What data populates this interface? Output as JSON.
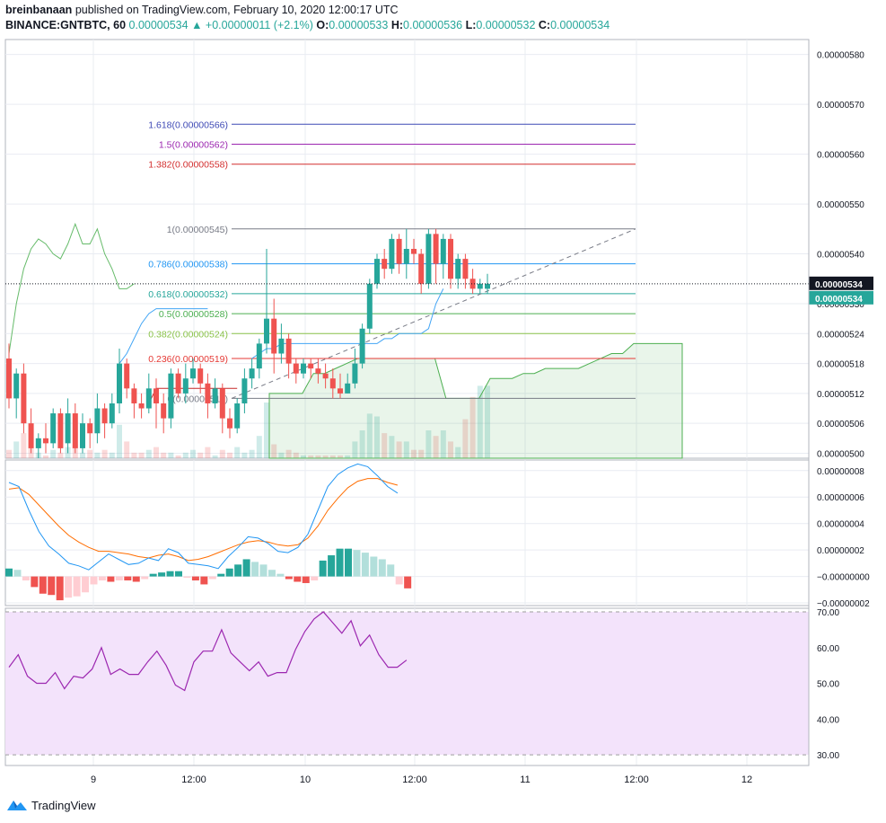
{
  "header": {
    "author": "breinbanaan",
    "published_text": "published on TradingView.com, February 10, 2020 12:00:17 UTC",
    "symbol": "BINANCE:GNTBTC, 60",
    "price": "0.00000534",
    "change": "▲ +0.00000011 (+2.1%)",
    "o_label": "O:",
    "o": "0.00000533",
    "h_label": "H:",
    "h": "0.00000536",
    "l_label": "L:",
    "l": "0.00000532",
    "c_label": "C:",
    "c": "0.00000534"
  },
  "brand": {
    "name": "TradingView"
  },
  "colors": {
    "up": "#26a69a",
    "down": "#ef5350",
    "grid": "#e9ecf2",
    "rsi_fill": "#f3e3fb",
    "rsi_line": "#9c27b0",
    "macd": "#2196f3",
    "signal": "#ff6d00"
  },
  "chart_data": {
    "type": "candlestick",
    "price_axis": {
      "ylim": [
        4.99e-06,
        5.83e-06
      ],
      "ticks": [
        "0.00000580",
        "0.00000570",
        "0.00000560",
        "0.00000550",
        "0.00000540",
        "0.00000530",
        "0.00000524",
        "0.00000518",
        "0.00000512",
        "0.00000506",
        "0.00000500"
      ],
      "tick_values": [
        5.8,
        5.7,
        5.6,
        5.5,
        5.4,
        5.3,
        5.24,
        5.18,
        5.12,
        5.06,
        5.0
      ],
      "last_price_label": "0.00000534",
      "second_label": "0.00000534"
    },
    "time_axis": {
      "ticks": [
        "9",
        "12:00",
        "10",
        "12:00",
        "11",
        "12:00",
        "12"
      ]
    },
    "fibonacci": [
      {
        "label": "1.618(0.00000566)",
        "value": 5.66,
        "color": "#3f4ab5"
      },
      {
        "label": "1.5(0.00000562)",
        "value": 5.62,
        "color": "#9c27b0"
      },
      {
        "label": "1.382(0.00000558)",
        "value": 5.58,
        "color": "#d32f2f"
      },
      {
        "label": "1(0.00000545)",
        "value": 5.45,
        "color": "#787b86"
      },
      {
        "label": "0.786(0.00000538)",
        "value": 5.38,
        "color": "#2196f3"
      },
      {
        "label": "0.618(0.00000532)",
        "value": 5.32,
        "color": "#26a69a"
      },
      {
        "label": "0.5(0.00000528)",
        "value": 5.28,
        "color": "#4caf50"
      },
      {
        "label": "0.382(0.00000524)",
        "value": 5.24,
        "color": "#8bc34a"
      },
      {
        "label": "0.236(0.00000519)",
        "value": 5.19,
        "color": "#e53935"
      },
      {
        "label": "0(0.00000511)",
        "value": 5.11,
        "color": "#787b86"
      }
    ],
    "candles": [
      [
        5.19,
        5.11,
        5.22,
        5.09
      ],
      [
        5.11,
        5.16,
        5.17,
        5.07
      ],
      [
        5.16,
        5.06,
        5.18,
        5.04
      ],
      [
        5.06,
        5.01,
        5.09,
        5.0
      ],
      [
        5.01,
        5.03,
        5.04,
        4.99
      ],
      [
        5.03,
        5.02,
        5.06,
        5.0
      ],
      [
        5.02,
        5.08,
        5.09,
        5.01
      ],
      [
        5.08,
        5.01,
        5.09,
        5.0
      ],
      [
        5.02,
        5.08,
        5.11,
        5.0
      ],
      [
        5.08,
        5.01,
        5.1,
        5.0
      ],
      [
        5.01,
        5.06,
        5.08,
        5.0
      ],
      [
        5.06,
        5.04,
        5.07,
        5.01
      ],
      [
        5.04,
        5.09,
        5.12,
        5.02
      ],
      [
        5.09,
        5.06,
        5.1,
        5.03
      ],
      [
        5.06,
        5.1,
        5.12,
        5.05
      ],
      [
        5.1,
        5.18,
        5.21,
        5.08
      ],
      [
        5.18,
        5.13,
        5.19,
        5.11
      ],
      [
        5.13,
        5.1,
        5.14,
        5.07
      ],
      [
        5.1,
        5.09,
        5.12,
        5.07
      ],
      [
        5.09,
        5.13,
        5.16,
        5.08
      ],
      [
        5.13,
        5.1,
        5.15,
        5.05
      ],
      [
        5.1,
        5.07,
        5.12,
        5.04
      ],
      [
        5.07,
        5.16,
        5.17,
        5.05
      ],
      [
        5.16,
        5.12,
        5.17,
        5.11
      ],
      [
        5.12,
        5.15,
        5.18,
        5.1
      ],
      [
        5.15,
        5.17,
        5.19,
        5.14
      ],
      [
        5.17,
        5.14,
        5.18,
        5.12
      ],
      [
        5.14,
        5.1,
        5.16,
        5.07
      ],
      [
        5.1,
        5.13,
        5.15,
        5.09
      ],
      [
        5.13,
        5.07,
        5.14,
        5.04
      ],
      [
        5.07,
        5.05,
        5.09,
        5.03
      ],
      [
        5.05,
        5.1,
        5.11,
        5.04
      ],
      [
        5.1,
        5.15,
        5.17,
        5.08
      ],
      [
        5.15,
        5.17,
        5.19,
        5.13
      ],
      [
        5.17,
        5.22,
        5.23,
        5.15
      ],
      [
        5.22,
        5.27,
        5.41,
        5.2
      ],
      [
        5.27,
        5.2,
        5.31,
        5.16
      ],
      [
        5.2,
        5.23,
        5.26,
        5.18
      ],
      [
        5.23,
        5.18,
        5.24,
        5.15
      ],
      [
        5.18,
        5.16,
        5.19,
        5.14
      ],
      [
        5.16,
        5.18,
        5.19,
        5.15
      ],
      [
        5.18,
        5.17,
        5.19,
        5.15
      ],
      [
        5.17,
        5.16,
        5.19,
        5.14
      ],
      [
        5.16,
        5.15,
        5.18,
        5.13
      ],
      [
        5.15,
        5.13,
        5.17,
        5.11
      ],
      [
        5.13,
        5.12,
        5.16,
        5.11
      ],
      [
        5.12,
        5.14,
        5.16,
        5.12
      ],
      [
        5.14,
        5.18,
        5.21,
        5.13
      ],
      [
        5.18,
        5.25,
        5.26,
        5.17
      ],
      [
        5.25,
        5.34,
        5.35,
        5.24
      ],
      [
        5.34,
        5.39,
        5.4,
        5.33
      ],
      [
        5.39,
        5.37,
        5.41,
        5.35
      ],
      [
        5.37,
        5.43,
        5.44,
        5.36
      ],
      [
        5.43,
        5.38,
        5.44,
        5.36
      ],
      [
        5.38,
        5.41,
        5.45,
        5.35
      ],
      [
        5.41,
        5.4,
        5.43,
        5.38
      ],
      [
        5.4,
        5.34,
        5.41,
        5.32
      ],
      [
        5.34,
        5.44,
        5.45,
        5.33
      ],
      [
        5.44,
        5.38,
        5.45,
        5.34
      ],
      [
        5.38,
        5.43,
        5.44,
        5.35
      ],
      [
        5.43,
        5.35,
        5.44,
        5.33
      ],
      [
        5.35,
        5.39,
        5.4,
        5.33
      ],
      [
        5.39,
        5.35,
        5.4,
        5.33
      ],
      [
        5.35,
        5.33,
        5.37,
        5.32
      ],
      [
        5.33,
        5.34,
        5.35,
        5.32
      ],
      [
        5.33,
        5.34,
        5.36,
        5.32
      ]
    ],
    "volume": [
      [
        3,
        0
      ],
      [
        6,
        1
      ],
      [
        9,
        0
      ],
      [
        4,
        0
      ],
      [
        2,
        1
      ],
      [
        1,
        0
      ],
      [
        3,
        1
      ],
      [
        2,
        0
      ],
      [
        4,
        1
      ],
      [
        5,
        0
      ],
      [
        2,
        1
      ],
      [
        3,
        0
      ],
      [
        2,
        1
      ],
      [
        3,
        0
      ],
      [
        2,
        1
      ],
      [
        12,
        1
      ],
      [
        6,
        0
      ],
      [
        2,
        0
      ],
      [
        2,
        0
      ],
      [
        3,
        1
      ],
      [
        4,
        0
      ],
      [
        2,
        0
      ],
      [
        2,
        1
      ],
      [
        1,
        0
      ],
      [
        2,
        1
      ],
      [
        3,
        1
      ],
      [
        2,
        0
      ],
      [
        4,
        0
      ],
      [
        1,
        1
      ],
      [
        3,
        0
      ],
      [
        2,
        0
      ],
      [
        4,
        1
      ],
      [
        2,
        1
      ],
      [
        3,
        1
      ],
      [
        8,
        1
      ],
      [
        20,
        1
      ],
      [
        5,
        0
      ],
      [
        2,
        1
      ],
      [
        3,
        0
      ],
      [
        2,
        0
      ],
      [
        1,
        1
      ],
      [
        1,
        0
      ],
      [
        1,
        0
      ],
      [
        1,
        0
      ],
      [
        1,
        0
      ],
      [
        1,
        0
      ],
      [
        1,
        1
      ],
      [
        6,
        1
      ],
      [
        10,
        1
      ],
      [
        16,
        1
      ],
      [
        15,
        1
      ],
      [
        9,
        0
      ],
      [
        8,
        1
      ],
      [
        6,
        0
      ],
      [
        6,
        1
      ],
      [
        3,
        0
      ],
      [
        3,
        0
      ],
      [
        10,
        1
      ],
      [
        8,
        0
      ],
      [
        10,
        1
      ],
      [
        6,
        0
      ],
      [
        4,
        1
      ],
      [
        14,
        0
      ],
      [
        22,
        0
      ],
      [
        26,
        1
      ],
      [
        26,
        1
      ]
    ],
    "ma_blue": [
      null,
      null,
      null,
      null,
      null,
      null,
      null,
      null,
      null,
      null,
      null,
      null,
      null,
      null,
      null,
      5.18,
      5.2,
      5.23,
      5.26,
      5.28,
      5.29,
      5.29,
      5.29,
      5.29,
      5.29,
      5.29,
      5.29,
      5.29,
      null,
      null,
      null,
      null,
      null,
      5.19,
      5.2,
      5.21,
      5.21,
      5.22,
      5.22,
      5.22,
      5.22,
      5.22,
      5.22,
      5.22,
      5.22,
      5.22,
      5.22,
      5.22,
      5.22,
      5.22,
      5.22,
      5.23,
      5.23,
      5.24,
      5.24,
      5.24,
      5.24,
      5.25,
      5.3,
      5.33
    ],
    "ma_green": [
      5.2,
      5.3,
      5.37,
      5.41,
      5.43,
      5.42,
      5.4,
      5.39,
      5.42,
      5.46,
      5.42,
      5.42,
      5.45,
      5.4,
      5.37,
      5.33,
      5.33,
      5.34
    ],
    "ma_red": [
      null,
      null,
      null,
      null,
      null,
      null,
      null,
      null,
      null,
      null,
      null,
      null,
      null,
      null,
      null,
      null,
      null,
      null,
      null,
      5.1,
      5.13,
      5.13,
      5.13,
      5.13,
      5.13,
      5.13,
      5.13,
      5.13,
      5.13,
      5.13,
      5.13,
      5.13
    ],
    "ichimoku_cloud": [
      5.12,
      5.12,
      5.12,
      5.12,
      5.16,
      5.16,
      5.17,
      5.18,
      5.19,
      5.19,
      5.19,
      5.19,
      5.19,
      5.19,
      5.19,
      5.19,
      5.11,
      5.11,
      5.11,
      5.11,
      5.15,
      5.15,
      5.15,
      5.16,
      5.16,
      5.17,
      5.17,
      5.17,
      5.17,
      5.18,
      5.19,
      5.2,
      5.2,
      5.22,
      5.22,
      5.22,
      5.22
    ],
    "macd": {
      "ticks": [
        "0.00000008",
        "0.00000006",
        "0.00000004",
        "0.00000002",
        "−0.00000000",
        "−0.00000002"
      ],
      "tick_values": [
        8,
        6,
        4,
        2,
        0,
        -2
      ],
      "ylim": [
        -2.2,
        8.8
      ],
      "hist": [
        0.6,
        0.5,
        -0.3,
        -0.8,
        -1.3,
        -1.4,
        -1.8,
        -1.6,
        -1.5,
        -1.2,
        -0.6,
        -0.3,
        -0.4,
        -0.3,
        -0.3,
        -0.4,
        -0.2,
        0.2,
        0.3,
        0.4,
        0.4,
        -0.1,
        -0.3,
        -0.6,
        -0.2,
        0.2,
        0.6,
        0.9,
        1.3,
        1.1,
        0.9,
        0.5,
        0.2,
        -0.2,
        -0.4,
        -0.5,
        -0.3,
        1.2,
        1.6,
        2.1,
        2.1,
        2.0,
        1.8,
        1.5,
        1.3,
        0.9,
        -0.6,
        -0.9
      ],
      "macd_line": [
        7.1,
        6.8,
        5.0,
        3.4,
        2.3,
        1.7,
        1.0,
        0.8,
        0.5,
        1.1,
        1.7,
        1.3,
        0.9,
        1.0,
        1.4,
        1.2,
        2.1,
        1.8,
        1.0,
        0.9,
        0.8,
        0.6,
        1.5,
        2.2,
        3.0,
        2.9,
        2.5,
        1.9,
        1.8,
        2.2,
        3.2,
        5.0,
        6.8,
        7.7,
        8.2,
        8.5,
        8.3,
        7.6,
        6.8,
        6.3
      ],
      "signal_line": [
        6.6,
        6.7,
        6.2,
        5.4,
        4.6,
        3.8,
        3.1,
        2.6,
        2.2,
        1.9,
        1.9,
        1.8,
        1.7,
        1.5,
        1.4,
        1.6,
        1.7,
        1.5,
        1.2,
        1.3,
        1.5,
        1.8,
        2.1,
        2.4,
        2.6,
        2.7,
        2.6,
        2.4,
        2.3,
        2.4,
        2.9,
        3.8,
        5.0,
        5.9,
        6.7,
        7.2,
        7.4,
        7.4,
        7.1,
        6.9
      ]
    },
    "rsi": {
      "ticks": [
        "70.00",
        "60.00",
        "50.00",
        "40.00",
        "30.00"
      ],
      "tick_values": [
        70,
        60,
        50,
        40,
        30
      ],
      "ylim": [
        27,
        71
      ],
      "band": [
        30,
        70
      ],
      "values": [
        54.5,
        58.0,
        52.0,
        50.0,
        50.0,
        53.0,
        48.5,
        52.0,
        51.5,
        54.0,
        60.0,
        52.5,
        54.0,
        52.5,
        52.5,
        56.0,
        59.0,
        55.0,
        49.5,
        48.0,
        56.0,
        59.0,
        59.0,
        65.0,
        58.5,
        56.0,
        53.5,
        56.0,
        52.0,
        53.0,
        53.0,
        59.5,
        64.5,
        68.0,
        70.0,
        67.0,
        64.0,
        67.5,
        60.5,
        63.5,
        58.0,
        54.5,
        54.5,
        56.5
      ]
    }
  }
}
